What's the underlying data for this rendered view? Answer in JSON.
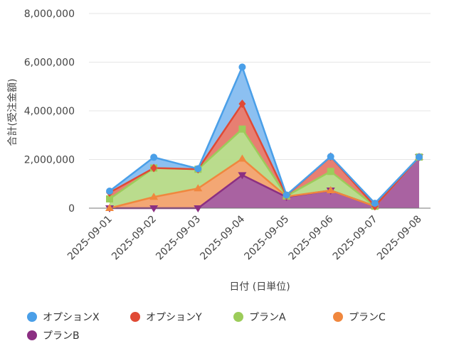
{
  "chart_data": {
    "type": "area",
    "stacked": true,
    "ylabel": "合計(受注金額)",
    "xlabel": "日付 (日単位)",
    "ylim": [
      0,
      8000000
    ],
    "yticks": [
      "0",
      "2,000,000",
      "4,000,000",
      "6,000,000",
      "8,000,000"
    ],
    "ytick_values": [
      0,
      2000000,
      4000000,
      6000000,
      8000000
    ],
    "categories": [
      "2025-09-01",
      "2025-09-02",
      "2025-09-03",
      "2025-09-04",
      "2025-09-05",
      "2025-09-06",
      "2025-09-07",
      "2025-09-08"
    ],
    "legend_position": "bottom",
    "series": [
      {
        "name": "プランB",
        "color": "#8b2f82",
        "fill": "#a45a9c",
        "marker": "triangle-down",
        "values": [
          0,
          0,
          0,
          1360000,
          460000,
          730000,
          80000,
          2100000
        ]
      },
      {
        "name": "プランC",
        "color": "#f0873e",
        "fill": "#f2a26d",
        "marker": "triangle",
        "values": [
          0,
          460000,
          810000,
          670000,
          20000,
          0,
          0,
          0
        ]
      },
      {
        "name": "プランA",
        "color": "#9ccc5a",
        "fill": "#b6da87",
        "marker": "square",
        "values": [
          380000,
          1190000,
          790000,
          1220000,
          20000,
          780000,
          0,
          0
        ]
      },
      {
        "name": "オプションY",
        "color": "#e04a35",
        "fill": "#e6786a",
        "marker": "diamond",
        "values": [
          260000,
          0,
          0,
          1040000,
          20000,
          610000,
          0,
          0
        ]
      },
      {
        "name": "オプションX",
        "color": "#4a9fe8",
        "fill": "#86bdf0",
        "marker": "circle",
        "values": [
          60000,
          440000,
          20000,
          1510000,
          20000,
          0,
          120000,
          0
        ]
      }
    ],
    "legend_order": [
      "オプションX",
      "オプションY",
      "プランA",
      "プランC",
      "プランB"
    ]
  }
}
